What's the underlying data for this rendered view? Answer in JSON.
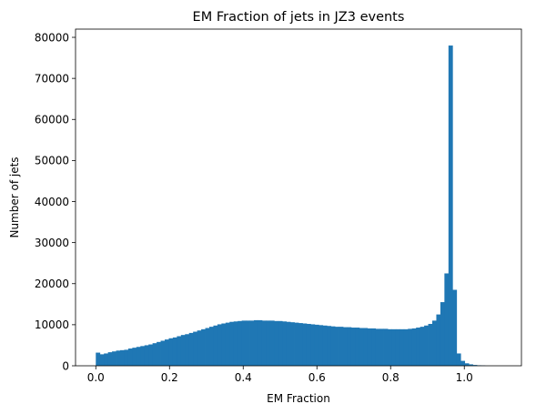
{
  "chart_data": {
    "type": "bar",
    "subtype": "histogram",
    "title": "EM Fraction of jets in JZ3 events",
    "xlabel": "EM Fraction",
    "ylabel": "Number of jets",
    "xlim": [
      -0.055,
      1.155
    ],
    "ylim": [
      0,
      82000
    ],
    "xticks": [
      0.0,
      0.2,
      0.4,
      0.6,
      0.8,
      1.0
    ],
    "xtick_labels": [
      "0.0",
      "0.2",
      "0.4",
      "0.6",
      "0.8",
      "1.0"
    ],
    "yticks": [
      0,
      10000,
      20000,
      30000,
      40000,
      50000,
      60000,
      70000,
      80000
    ],
    "ytick_labels": [
      "0",
      "10000",
      "20000",
      "30000",
      "40000",
      "50000",
      "60000",
      "70000",
      "80000"
    ],
    "bin_start": 0.0,
    "bin_width": 0.011,
    "values": [
      3200,
      2800,
      3000,
      3300,
      3500,
      3700,
      3800,
      3900,
      4200,
      4400,
      4600,
      4800,
      5000,
      5200,
      5500,
      5800,
      6100,
      6400,
      6700,
      6900,
      7200,
      7500,
      7700,
      8000,
      8300,
      8600,
      8900,
      9200,
      9500,
      9800,
      10100,
      10300,
      10500,
      10700,
      10800,
      10900,
      11000,
      11000,
      11000,
      11100,
      11100,
      11000,
      11000,
      11000,
      10900,
      10900,
      10800,
      10700,
      10600,
      10500,
      10400,
      10300,
      10200,
      10100,
      10000,
      9900,
      9800,
      9700,
      9600,
      9500,
      9500,
      9400,
      9400,
      9300,
      9300,
      9200,
      9200,
      9100,
      9100,
      9000,
      9000,
      9000,
      8900,
      8900,
      8900,
      8900,
      8900,
      9000,
      9100,
      9300,
      9500,
      9800,
      10200,
      11000,
      12500,
      15500,
      22500,
      78000,
      18500,
      3000,
      1200,
      600,
      350,
      200,
      120,
      80
    ],
    "bar_color": "#1f77b4",
    "grid": false,
    "legend": "none"
  }
}
